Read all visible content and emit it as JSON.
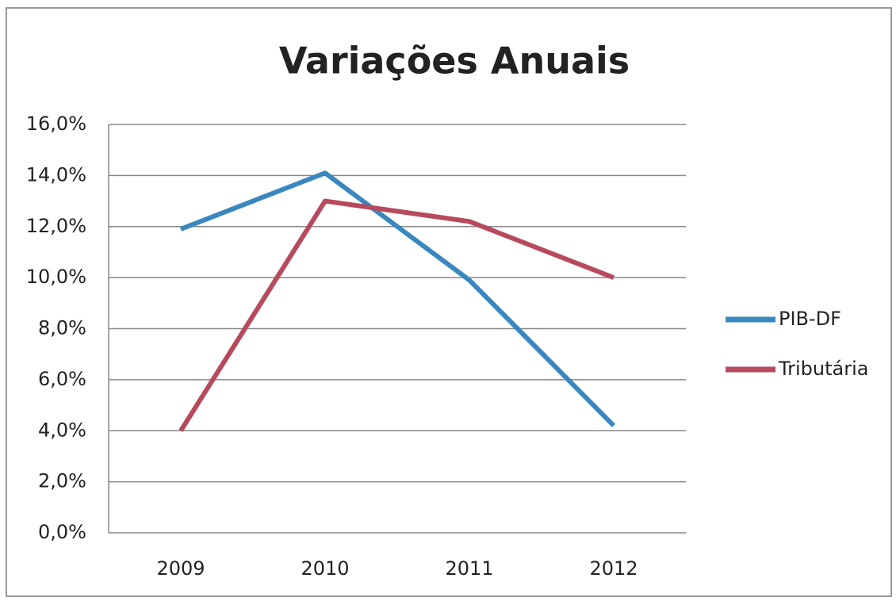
{
  "chart_data": {
    "type": "line",
    "title": "Variações Anuais",
    "categories": [
      "2009",
      "2010",
      "2011",
      "2012"
    ],
    "series": [
      {
        "name": "PIB-DF",
        "color": "#3a87c0",
        "values": [
          11.9,
          14.1,
          9.9,
          4.2
        ]
      },
      {
        "name": "Tributária",
        "color": "#b84a5e",
        "values": [
          4.0,
          13.0,
          12.2,
          10.0
        ]
      }
    ],
    "ylim": [
      0,
      16
    ],
    "yticks": [
      {
        "value": 0,
        "label": "0,0%"
      },
      {
        "value": 2,
        "label": "2,0%"
      },
      {
        "value": 4,
        "label": "4,0%"
      },
      {
        "value": 6,
        "label": "6,0%"
      },
      {
        "value": 8,
        "label": "8,0%"
      },
      {
        "value": 10,
        "label": "10,0%"
      },
      {
        "value": 12,
        "label": "12,0%"
      },
      {
        "value": 14,
        "label": "14,0%"
      },
      {
        "value": 16,
        "label": "16,0%"
      }
    ],
    "grid": true,
    "legend": "right"
  }
}
